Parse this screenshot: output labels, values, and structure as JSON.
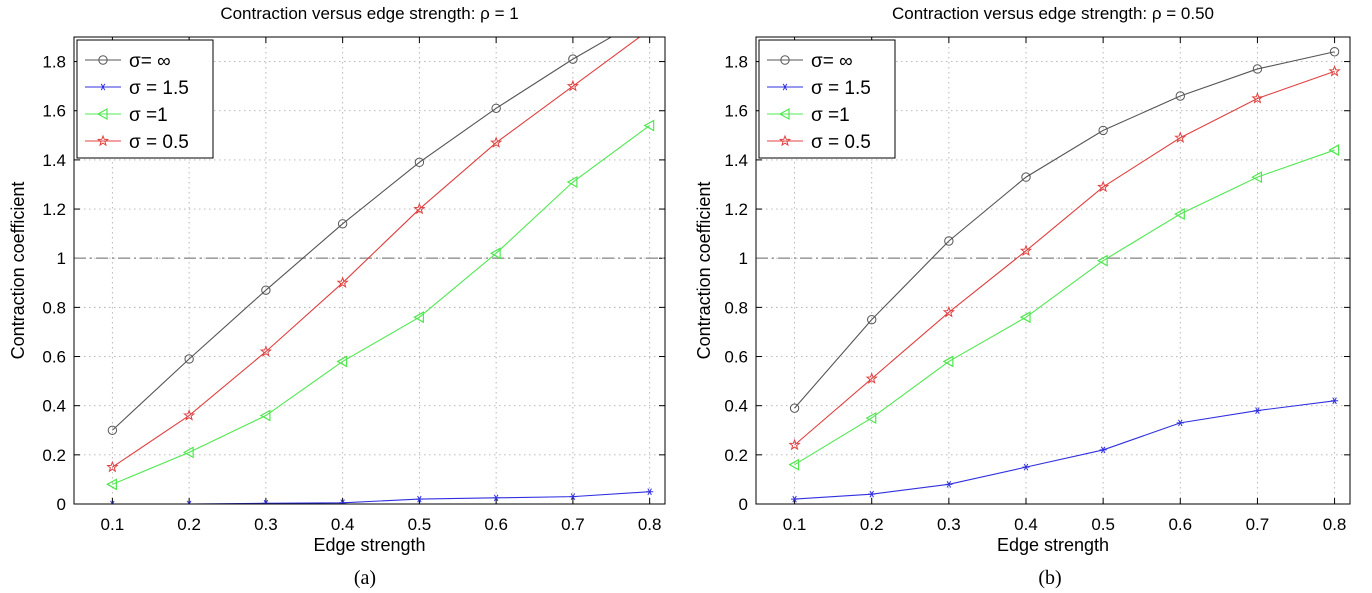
{
  "chart_data": [
    {
      "type": "line",
      "title": "Contraction versus edge strength: ρ = 1",
      "caption": "(a)",
      "xlabel": "Edge strength",
      "ylabel": "Contraction coefficient",
      "xlim": [
        0.05,
        0.82
      ],
      "ylim": [
        0,
        1.9
      ],
      "grid": true,
      "legend_position": "top-left",
      "xticks": [
        "0.1",
        "0.2",
        "0.3",
        "0.4",
        "0.5",
        "0.6",
        "0.7",
        "0.8"
      ],
      "yticks": [
        "0",
        "0.2",
        "0.4",
        "0.6",
        "0.8",
        "1",
        "1.2",
        "1.4",
        "1.6",
        "1.8"
      ],
      "reference_line": 1,
      "x": [
        0.1,
        0.2,
        0.3,
        0.4,
        0.5,
        0.6,
        0.7,
        0.8
      ],
      "series": [
        {
          "name": "σ= ∞",
          "color": "#555555",
          "marker": "circle",
          "values": [
            0.3,
            0.59,
            0.87,
            1.14,
            1.39,
            1.61,
            1.81,
            1.99
          ]
        },
        {
          "name": "σ = 1.5",
          "color": "#3030e0",
          "marker": "star",
          "values": [
            0.0,
            0.0,
            0.003,
            0.005,
            0.02,
            0.025,
            0.03,
            0.05
          ]
        },
        {
          "name": "σ =1",
          "color": "#50e850",
          "marker": "triangle-left",
          "values": [
            0.08,
            0.21,
            0.36,
            0.58,
            0.76,
            1.02,
            1.31,
            1.54
          ]
        },
        {
          "name": "σ = 0.5",
          "color": "#e04040",
          "marker": "pentagram",
          "values": [
            0.15,
            0.36,
            0.62,
            0.9,
            1.2,
            1.47,
            1.7,
            1.93
          ]
        }
      ]
    },
    {
      "type": "line",
      "title": "Contraction versus edge strength: ρ = 0.50",
      "caption": "(b)",
      "xlabel": "Edge strength",
      "ylabel": "Contraction coefficient",
      "xlim": [
        0.05,
        0.82
      ],
      "ylim": [
        0,
        1.9
      ],
      "grid": true,
      "legend_position": "top-left",
      "xticks": [
        "0.1",
        "0.2",
        "0.3",
        "0.4",
        "0.5",
        "0.6",
        "0.7",
        "0.8"
      ],
      "yticks": [
        "0",
        "0.2",
        "0.4",
        "0.6",
        "0.8",
        "1",
        "1.2",
        "1.4",
        "1.6",
        "1.8"
      ],
      "reference_line": 1,
      "x": [
        0.1,
        0.2,
        0.3,
        0.4,
        0.5,
        0.6,
        0.7,
        0.8
      ],
      "series": [
        {
          "name": "σ= ∞",
          "color": "#555555",
          "marker": "circle",
          "values": [
            0.39,
            0.75,
            1.07,
            1.33,
            1.52,
            1.66,
            1.77,
            1.84
          ]
        },
        {
          "name": "σ = 1.5",
          "color": "#3030e0",
          "marker": "star",
          "values": [
            0.02,
            0.04,
            0.08,
            0.15,
            0.22,
            0.33,
            0.38,
            0.42
          ]
        },
        {
          "name": "σ =1",
          "color": "#50e850",
          "marker": "triangle-left",
          "values": [
            0.16,
            0.35,
            0.58,
            0.76,
            0.99,
            1.18,
            1.33,
            1.44
          ]
        },
        {
          "name": "σ = 0.5",
          "color": "#e04040",
          "marker": "pentagram",
          "values": [
            0.24,
            0.51,
            0.78,
            1.03,
            1.29,
            1.49,
            1.65,
            1.76
          ]
        }
      ]
    }
  ]
}
